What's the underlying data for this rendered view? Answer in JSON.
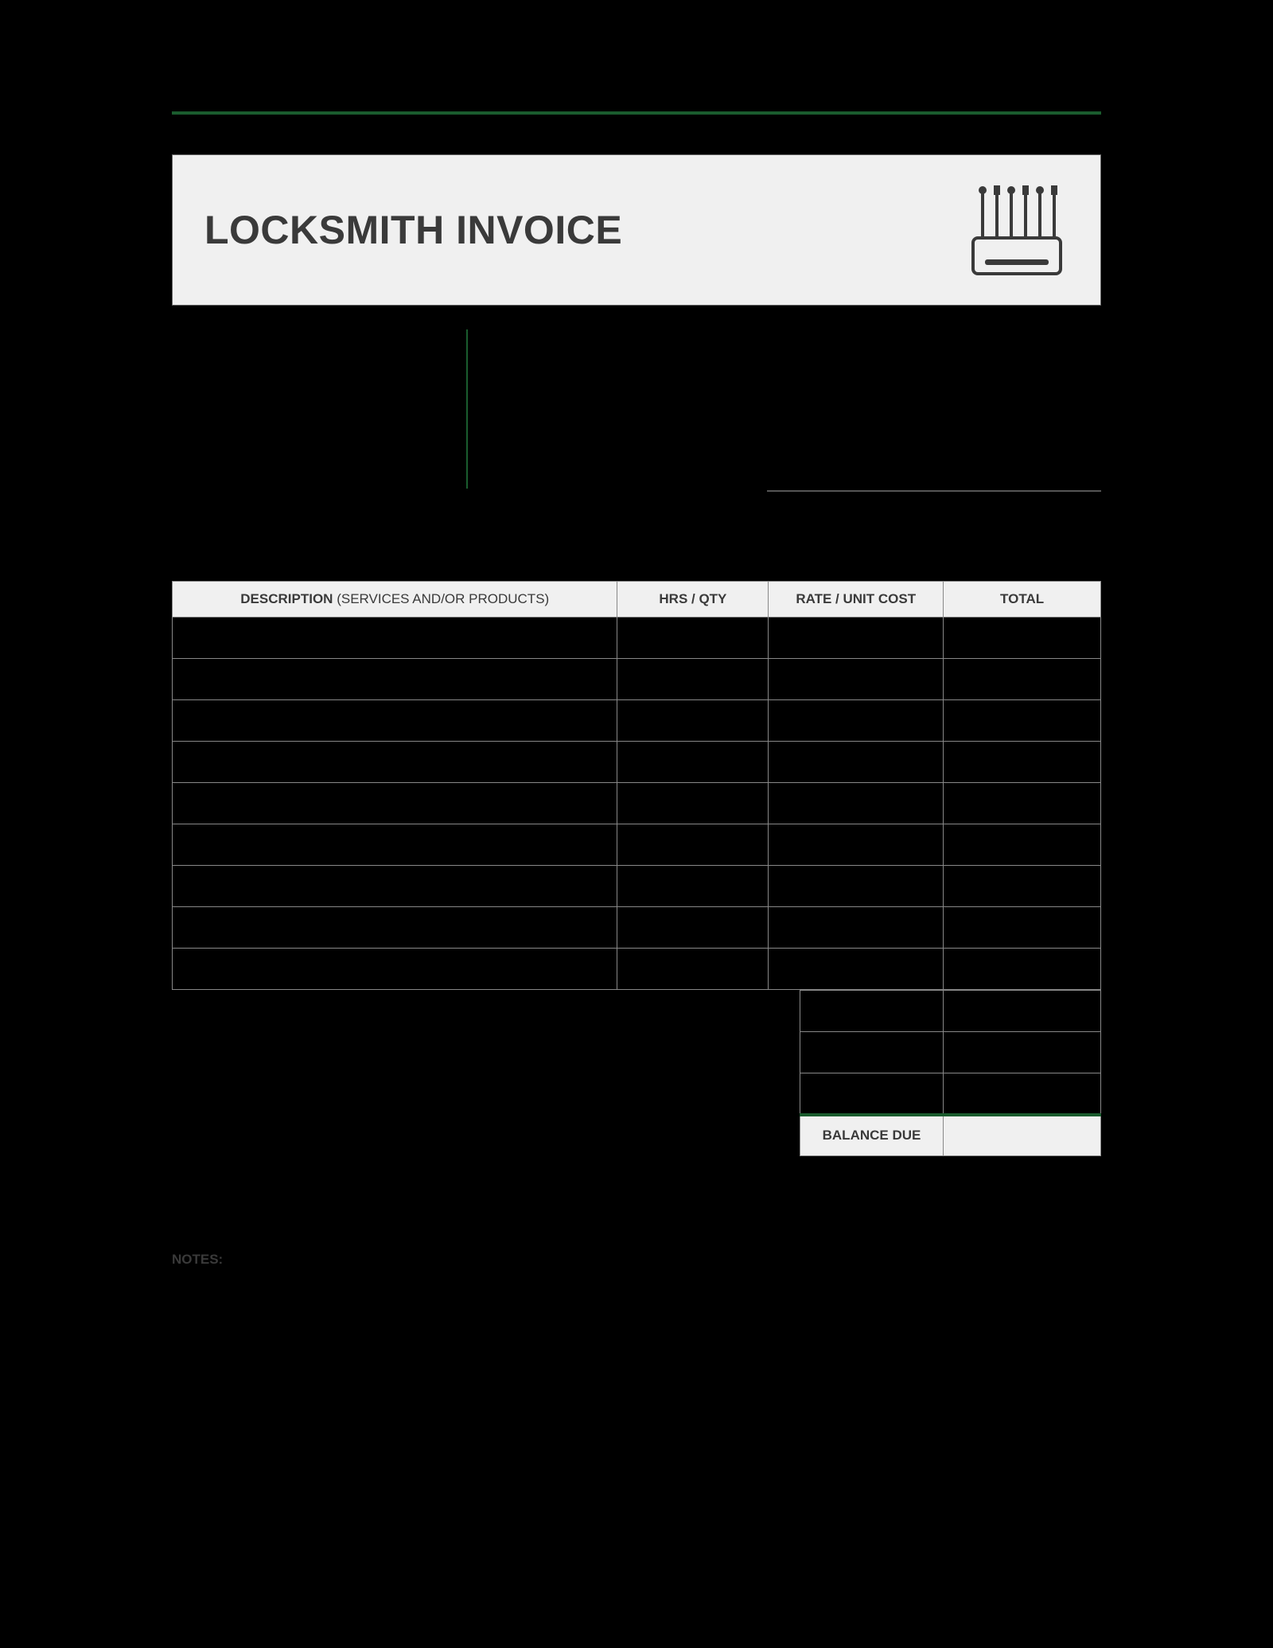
{
  "colors": {
    "page_bg": "#000000",
    "panel_bg": "#f0f0f0",
    "accent": "#1a5c2e",
    "border": "#888888",
    "text": "#3a3a3a"
  },
  "header": {
    "title": "LOCKSMITH INVOICE",
    "icon": "lockpick-set-icon"
  },
  "table": {
    "columns": {
      "description_label": "DESCRIPTION",
      "description_sub": " (SERVICES AND/OR PRODUCTS)",
      "qty": "HRS / QTY",
      "rate": "RATE / UNIT COST",
      "total": "TOTAL"
    },
    "row_count": 9
  },
  "totals": {
    "blank_rows": 3,
    "balance_label": "BALANCE DUE"
  },
  "notes_label": "NOTES:"
}
